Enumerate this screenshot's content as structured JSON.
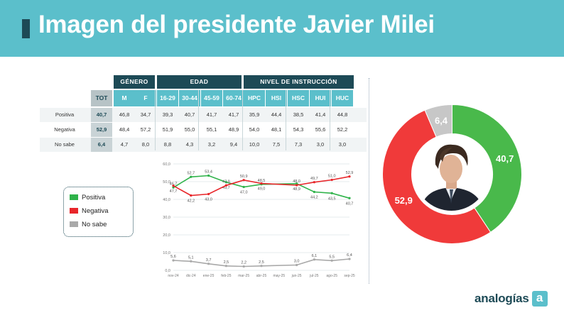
{
  "title": "Imagen del presidente Javier Milei",
  "brand": {
    "name": "analogías",
    "logo_letter": "a"
  },
  "table": {
    "groups": [
      "GÉNERO",
      "EDAD",
      "NIVEL DE INSTRUCCIÓN"
    ],
    "columns": [
      "TOT",
      "M",
      "F",
      "16-29",
      "30-44",
      "45-59",
      "60-74",
      "HPC",
      "HSI",
      "HSC",
      "HUI",
      "HUC"
    ],
    "rows": [
      {
        "label": "Positiva",
        "values": [
          "40,7",
          "46,8",
          "34,7",
          "39,3",
          "40,7",
          "41,7",
          "41,7",
          "35,9",
          "44,4",
          "38,5",
          "41,4",
          "44,8"
        ]
      },
      {
        "label": "Negativa",
        "values": [
          "52,9",
          "48,4",
          "57,2",
          "51,9",
          "55,0",
          "55,1",
          "48,9",
          "54,0",
          "48,1",
          "54,3",
          "55,6",
          "52,2"
        ]
      },
      {
        "label": "No sabe",
        "values": [
          "6,4",
          "4,7",
          "8,0",
          "8,8",
          "4,3",
          "3,2",
          "9,4",
          "10,0",
          "7,5",
          "7,3",
          "3,0",
          "3,0"
        ]
      }
    ]
  },
  "legend": [
    {
      "label": "Positiva",
      "color": "#2fb34a"
    },
    {
      "label": "Negativa",
      "color": "#e8262a"
    },
    {
      "label": "No sabe",
      "color": "#a9a9a9"
    }
  ],
  "chart_data": [
    {
      "type": "line",
      "title": "",
      "xlabel": "",
      "ylabel": "",
      "ylim": [
        0,
        60
      ],
      "yticks": [
        "0,0",
        "10,0",
        "20,0",
        "30,0",
        "40,0",
        "50,0",
        "60,0"
      ],
      "categories": [
        "nov-24",
        "dic-24",
        "ene-25",
        "feb-25",
        "mar-25",
        "abr-25",
        "may-25",
        "jun-25",
        "jul-25",
        "ago-25",
        "sep-25"
      ],
      "series": [
        {
          "name": "Positiva",
          "color": "#2fb34a",
          "points": [
            {
              "x": 0,
              "y": 46.7,
              "label": "46,7"
            },
            {
              "x": 1,
              "y": 52.7,
              "label": "52,7"
            },
            {
              "x": 2,
              "y": 53.4,
              "label": "53,4"
            },
            {
              "x": 3,
              "y": 49.7,
              "label": "49,7"
            },
            {
              "x": 4,
              "y": 47.0,
              "label": "47,0"
            },
            {
              "x": 5,
              "y": 48.5,
              "label": "48,5"
            },
            {
              "x": 7,
              "y": 48.9,
              "label": "48,9"
            },
            {
              "x": 8,
              "y": 44.2,
              "label": "44,2"
            },
            {
              "x": 9,
              "y": 43.5,
              "label": "43,5"
            },
            {
              "x": 10,
              "y": 40.7,
              "label": "40,7"
            }
          ]
        },
        {
          "name": "Negativa",
          "color": "#e8262a",
          "points": [
            {
              "x": 0,
              "y": 47.7,
              "label": "47,7"
            },
            {
              "x": 1,
              "y": 42.2,
              "label": "42,2"
            },
            {
              "x": 2,
              "y": 43.0,
              "label": "43,0"
            },
            {
              "x": 3,
              "y": 47.9,
              "label": "47,9"
            },
            {
              "x": 4,
              "y": 50.9,
              "label": "50,9"
            },
            {
              "x": 5,
              "y": 49.0,
              "label": "49,0"
            },
            {
              "x": 7,
              "y": 48.0,
              "label": "48,0"
            },
            {
              "x": 8,
              "y": 49.7,
              "label": "49,7"
            },
            {
              "x": 9,
              "y": 51.0,
              "label": "51,0"
            },
            {
              "x": 10,
              "y": 52.9,
              "label": "52,9"
            }
          ]
        },
        {
          "name": "No sabe",
          "color": "#a9a9a9",
          "points": [
            {
              "x": 0,
              "y": 5.6,
              "label": "5,6"
            },
            {
              "x": 1,
              "y": 5.1,
              "label": "5,1"
            },
            {
              "x": 2,
              "y": 3.7,
              "label": "3,7"
            },
            {
              "x": 3,
              "y": 2.5,
              "label": "2,5"
            },
            {
              "x": 4,
              "y": 2.2,
              "label": "2,2"
            },
            {
              "x": 5,
              "y": 2.5,
              "label": "2,5"
            },
            {
              "x": 7,
              "y": 3.0,
              "label": "3,0"
            },
            {
              "x": 8,
              "y": 6.1,
              "label": "6,1"
            },
            {
              "x": 9,
              "y": 5.5,
              "label": "5,5"
            },
            {
              "x": 10,
              "y": 6.4,
              "label": "6,4"
            }
          ]
        }
      ]
    },
    {
      "type": "pie",
      "title": "",
      "slices": [
        {
          "name": "Positiva",
          "value": 40.7,
          "label": "40,7",
          "color": "#49b94b"
        },
        {
          "name": "Negativa",
          "value": 52.9,
          "label": "52,9",
          "color": "#f03a3a"
        },
        {
          "name": "No sabe",
          "value": 6.4,
          "label": "6,4",
          "color": "#c7c7c7"
        }
      ]
    }
  ]
}
